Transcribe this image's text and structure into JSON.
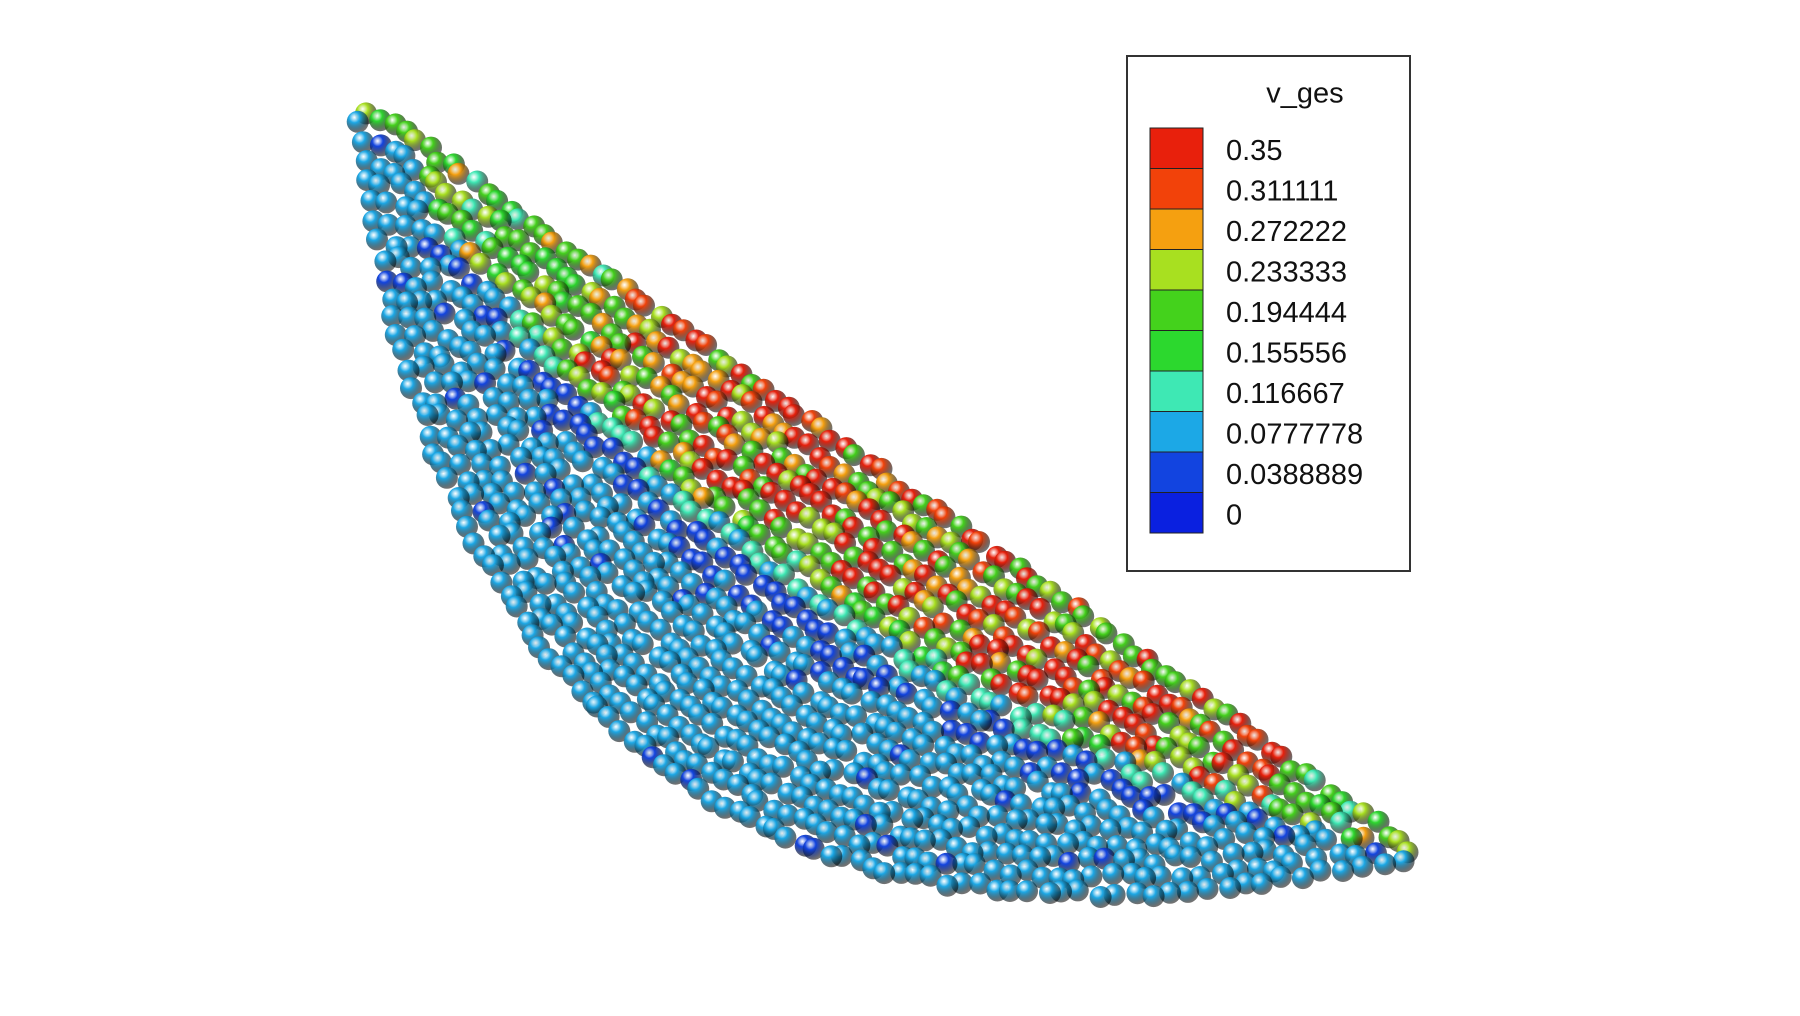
{
  "legend": {
    "title": "v_ges",
    "entries": [
      {
        "label": "0.35",
        "color": "#e8200c"
      },
      {
        "label": "0.311111",
        "color": "#f2420a"
      },
      {
        "label": "0.272222",
        "color": "#f5a010"
      },
      {
        "label": "0.233333",
        "color": "#a8e020"
      },
      {
        "label": "0.194444",
        "color": "#44d21c"
      },
      {
        "label": "0.155556",
        "color": "#2cd82e"
      },
      {
        "label": "0.116667",
        "color": "#3ee8b4"
      },
      {
        "label": "0.0777778",
        "color": "#1ca8e6"
      },
      {
        "label": "0.0388889",
        "color": "#1244e0"
      },
      {
        "label": "0",
        "color": "#0a20e0"
      }
    ]
  }
}
